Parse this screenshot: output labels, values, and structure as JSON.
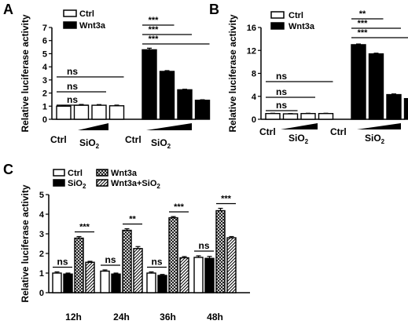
{
  "panels": {
    "A": {
      "label": "A"
    },
    "B": {
      "label": "B"
    },
    "C": {
      "label": "C"
    }
  },
  "legends": {
    "ab": {
      "ctrl": "Ctrl",
      "wnt3a": "Wnt3a"
    },
    "c": {
      "ctrl": "Ctrl",
      "wnt3a": "Wnt3a",
      "sio2": "SiO",
      "sio2_sub": "2",
      "combo": "Wnt3a+SiO",
      "combo_sub": "2"
    }
  },
  "xlabels": {
    "ctrl": "Ctrl",
    "sio2": "SiO",
    "sio2_sub": "2"
  },
  "chart_data": [
    {
      "panel": "A",
      "type": "bar",
      "ylabel": "Relative luciferase activity",
      "ylim": [
        0,
        7
      ],
      "yticks": [
        0,
        1,
        2,
        3,
        4,
        5,
        6,
        7
      ],
      "groups": [
        "Ctrl",
        "SiO2"
      ],
      "series": [
        {
          "name": "Ctrl",
          "values": [
            1.0,
            1.07,
            1.07,
            1.03
          ],
          "errors": [
            0.05,
            0.06,
            0.05,
            0.05
          ]
        },
        {
          "name": "Wnt3a",
          "values": [
            5.3,
            3.65,
            2.25,
            1.45
          ],
          "errors": [
            0.12,
            0.06,
            0.04,
            0.04
          ]
        }
      ],
      "annotations": [
        {
          "text": "ns",
          "from": 0,
          "to": 1
        },
        {
          "text": "ns",
          "from": 0,
          "to": 2
        },
        {
          "text": "ns",
          "from": 0,
          "to": 3
        },
        {
          "text": "***",
          "from": 4,
          "to": 5
        },
        {
          "text": "***",
          "from": 4,
          "to": 6
        },
        {
          "text": "***",
          "from": 4,
          "to": 7
        }
      ]
    },
    {
      "panel": "B",
      "type": "bar",
      "ylabel": "Relative luciferase activity",
      "ylim": [
        0,
        16
      ],
      "yticks": [
        0,
        4,
        8,
        12,
        16
      ],
      "groups": [
        "Ctrl",
        "SiO2"
      ],
      "series": [
        {
          "name": "Ctrl",
          "values": [
            1.0,
            0.95,
            1.0,
            1.0
          ],
          "errors": [
            0.05,
            0.05,
            0.05,
            0.05
          ]
        },
        {
          "name": "Wnt3a",
          "values": [
            13.0,
            11.4,
            4.3,
            3.6
          ],
          "errors": [
            0.12,
            0.12,
            0.12,
            0.12
          ]
        }
      ],
      "annotations": [
        {
          "text": "ns",
          "from": 0,
          "to": 1
        },
        {
          "text": "ns",
          "from": 0,
          "to": 2
        },
        {
          "text": "ns",
          "from": 0,
          "to": 3
        },
        {
          "text": "**",
          "from": 4,
          "to": 5
        },
        {
          "text": "***",
          "from": 4,
          "to": 6
        },
        {
          "text": "***",
          "from": 4,
          "to": 7
        }
      ]
    },
    {
      "panel": "C",
      "type": "bar",
      "ylabel": "Relative luciferase activity",
      "ylim": [
        0,
        5
      ],
      "yticks": [
        0,
        1,
        2,
        3,
        4,
        5
      ],
      "categories": [
        "12h",
        "24h",
        "36h",
        "48h"
      ],
      "series": [
        {
          "name": "Ctrl",
          "values": [
            1.0,
            1.1,
            1.0,
            1.8
          ],
          "errors": [
            0.06,
            0.06,
            0.06,
            0.08
          ]
        },
        {
          "name": "SiO2",
          "values": [
            0.95,
            0.95,
            0.88,
            1.75
          ],
          "errors": [
            0.05,
            0.05,
            0.05,
            0.1
          ]
        },
        {
          "name": "Wnt3a",
          "values": [
            2.78,
            3.18,
            3.82,
            4.18
          ],
          "errors": [
            0.08,
            0.08,
            0.06,
            0.12
          ]
        },
        {
          "name": "Wnt3a+SiO2",
          "values": [
            1.55,
            2.25,
            1.78,
            2.8
          ],
          "errors": [
            0.05,
            0.1,
            0.06,
            0.06
          ]
        }
      ],
      "annotations": [
        {
          "text": "ns",
          "category": 0
        },
        {
          "text": "***",
          "category": 0
        },
        {
          "text": "ns",
          "category": 1
        },
        {
          "text": "**",
          "category": 1
        },
        {
          "text": "ns",
          "category": 2
        },
        {
          "text": "***",
          "category": 2
        },
        {
          "text": "ns",
          "category": 3
        },
        {
          "text": "***",
          "category": 3
        }
      ]
    }
  ]
}
